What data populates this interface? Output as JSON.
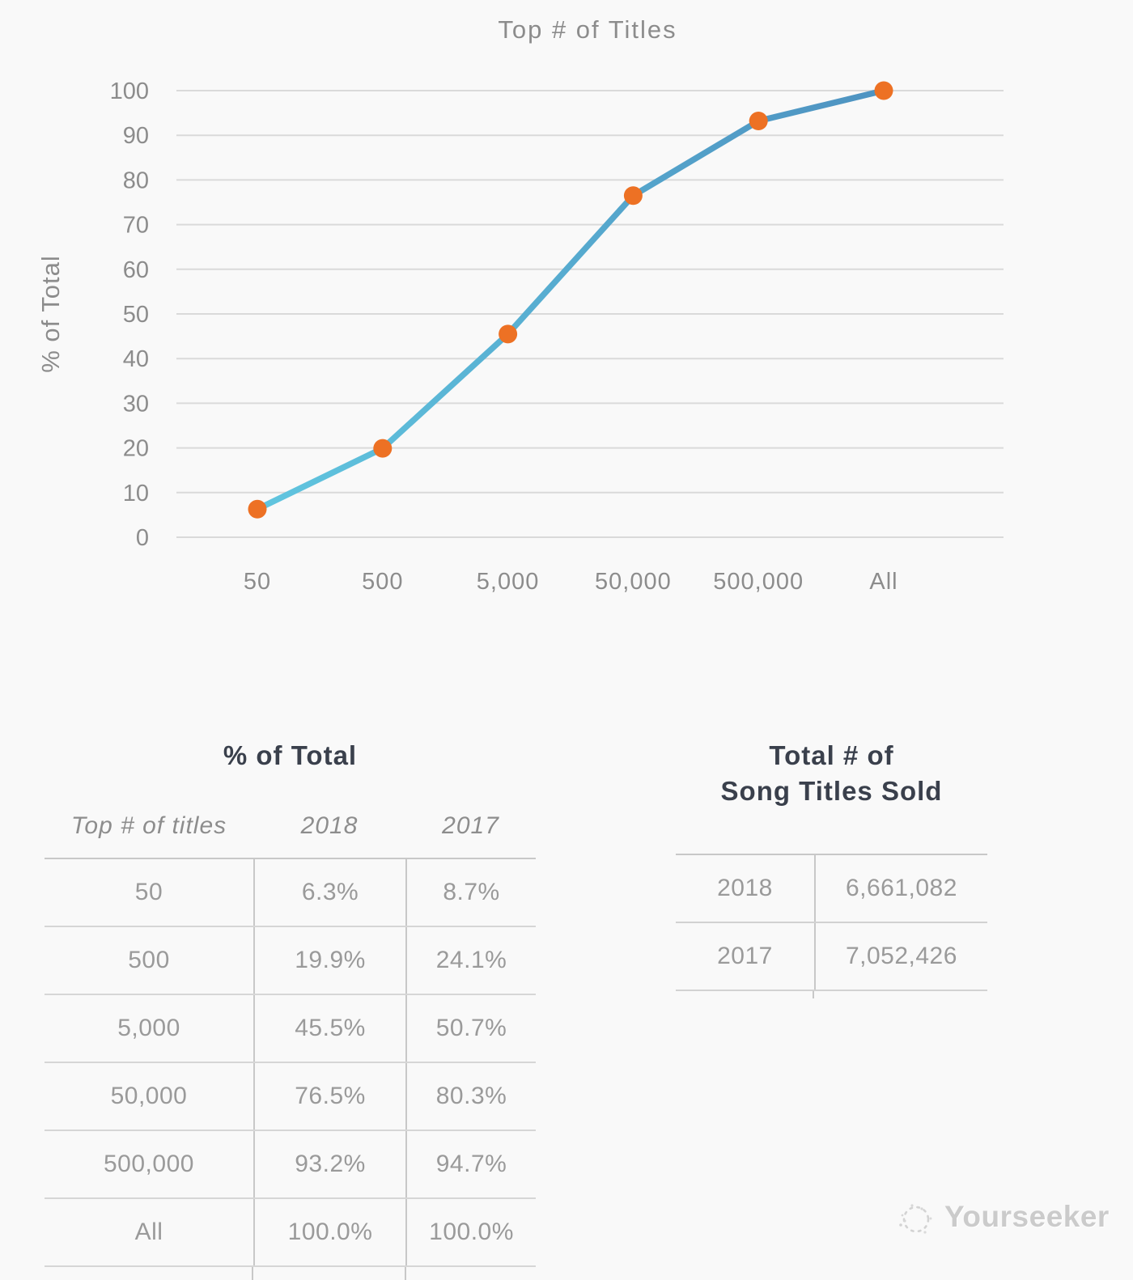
{
  "chart_data": {
    "type": "line",
    "title": "Top # of Titles",
    "xlabel": "",
    "ylabel": "% of Total",
    "categories": [
      "50",
      "500",
      "5,000",
      "50,000",
      "500,000",
      "All"
    ],
    "series": [
      {
        "name": "2018",
        "values": [
          6.3,
          19.9,
          45.5,
          76.5,
          93.2,
          100.0
        ]
      }
    ],
    "ylim": [
      0,
      100
    ],
    "ytick_step": 10,
    "grid": "horizontal",
    "legend": "none",
    "line_gradient": [
      "#60C5DF",
      "#4E93C1"
    ],
    "marker_color": "#ED7124"
  },
  "percent_table": {
    "title": "% of Total",
    "columns": [
      "Top # of titles",
      "2018",
      "2017"
    ],
    "rows": [
      [
        "50",
        "6.3%",
        "8.7%"
      ],
      [
        "500",
        "19.9%",
        "24.1%"
      ],
      [
        "5,000",
        "45.5%",
        "50.7%"
      ],
      [
        "50,000",
        "76.5%",
        "80.3%"
      ],
      [
        "500,000",
        "93.2%",
        "94.7%"
      ],
      [
        "All",
        "100.0%",
        "100.0%"
      ]
    ]
  },
  "totals_table": {
    "title_line1": "Total # of",
    "title_line2": "Song Titles Sold",
    "rows": [
      [
        "2018",
        "6,661,082"
      ],
      [
        "2017",
        "7,052,426"
      ]
    ]
  },
  "watermark": {
    "label": "Yourseeker"
  },
  "colors": {
    "background": "#f9f9f9",
    "grid": "#dadada",
    "axis_text": "#8c8c8c",
    "heading_text": "#3a404c",
    "table_text": "#9a9a9a",
    "border": "#c8c8c8",
    "line_start": "#60C5DF",
    "line_end": "#4E93C1",
    "marker": "#ED7124",
    "watermark_text": "#cbcbcb"
  }
}
